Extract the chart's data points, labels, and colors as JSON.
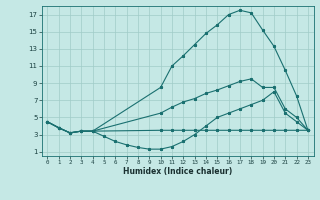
{
  "xlabel": "Humidex (Indice chaleur)",
  "ylabel": "",
  "xlim": [
    -0.5,
    23.5
  ],
  "ylim": [
    0.5,
    18
  ],
  "yticks": [
    1,
    3,
    5,
    7,
    9,
    11,
    13,
    15,
    17
  ],
  "xticks": [
    0,
    1,
    2,
    3,
    4,
    5,
    6,
    7,
    8,
    9,
    10,
    11,
    12,
    13,
    14,
    15,
    16,
    17,
    18,
    19,
    20,
    21,
    22,
    23
  ],
  "xtick_labels": [
    "0",
    "1",
    "2",
    "3",
    "4",
    "5",
    "6",
    "7",
    "8",
    "9",
    "10",
    "11",
    "12",
    "13",
    "14",
    "15",
    "16",
    "17",
    "18",
    "19",
    "20",
    "21",
    "22",
    "23"
  ],
  "bg_color": "#c5e8e5",
  "line_color": "#1a7070",
  "grid_color": "#a0ccc8",
  "line1_x": [
    0,
    1,
    2,
    3,
    4,
    10,
    11,
    12,
    13,
    14,
    15,
    16,
    17,
    18,
    19,
    20,
    21,
    22,
    23
  ],
  "line1_y": [
    4.5,
    3.8,
    3.2,
    3.4,
    3.4,
    8.5,
    11.0,
    12.2,
    13.5,
    14.8,
    15.8,
    17.0,
    17.5,
    17.2,
    15.2,
    13.3,
    10.5,
    7.5,
    3.5
  ],
  "line2_x": [
    0,
    1,
    2,
    3,
    4,
    10,
    11,
    12,
    13,
    14,
    15,
    16,
    17,
    18,
    19,
    20,
    21,
    22,
    23
  ],
  "line2_y": [
    4.5,
    3.8,
    3.2,
    3.4,
    3.4,
    5.5,
    6.2,
    6.8,
    7.2,
    7.8,
    8.2,
    8.7,
    9.2,
    9.5,
    8.5,
    8.5,
    6.0,
    5.0,
    3.5
  ],
  "line3_x": [
    0,
    1,
    2,
    3,
    4,
    10,
    11,
    12,
    13,
    14,
    15,
    16,
    17,
    18,
    19,
    20,
    21,
    22,
    23
  ],
  "line3_y": [
    4.5,
    3.8,
    3.2,
    3.4,
    3.4,
    3.5,
    3.5,
    3.5,
    3.5,
    3.5,
    3.5,
    3.5,
    3.5,
    3.5,
    3.5,
    3.5,
    3.5,
    3.5,
    3.5
  ],
  "line4_x": [
    0,
    1,
    2,
    3,
    4,
    5,
    6,
    7,
    8,
    9,
    10,
    11,
    12,
    13,
    14,
    15,
    16,
    17,
    18,
    19,
    20,
    21,
    22,
    23
  ],
  "line4_y": [
    4.5,
    3.8,
    3.2,
    3.4,
    3.4,
    2.8,
    2.2,
    1.8,
    1.5,
    1.3,
    1.3,
    1.6,
    2.2,
    3.0,
    4.0,
    5.0,
    5.5,
    6.0,
    6.5,
    7.0,
    8.0,
    5.5,
    4.5,
    3.5
  ]
}
